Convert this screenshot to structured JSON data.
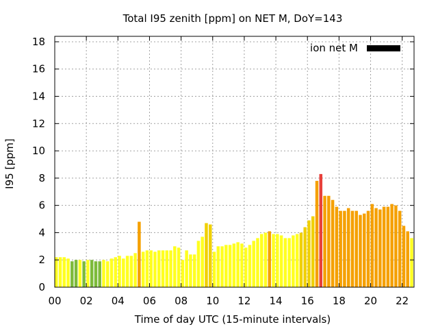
{
  "chart_data": {
    "type": "bar",
    "title": "Total I95 zenith [ppm] on NET M, DoY=143",
    "xlabel": "Time of day UTC (15-minute intervals)",
    "ylabel": "I95 [ppm]",
    "xlim": [
      0,
      22.75
    ],
    "ylim": [
      0,
      18.4
    ],
    "x_ticks": [
      "00",
      "02",
      "04",
      "06",
      "08",
      "10",
      "12",
      "14",
      "16",
      "18",
      "20",
      "22"
    ],
    "y_ticks": [
      "0",
      "2",
      "4",
      "6",
      "8",
      "10",
      "12",
      "14",
      "16",
      "18"
    ],
    "grid": true,
    "legend": {
      "label": "ion net M",
      "color": "#000000",
      "placement": "top-right"
    },
    "bar_interval_hours": 0.25,
    "color_scale": {
      "green": "#7cba3a",
      "yellow": "#ffff20",
      "gold": "#f0d000",
      "orange": "#f5a000",
      "red": "#e8403a"
    },
    "values": [
      2.2,
      2.2,
      2.2,
      2.1,
      1.9,
      2.0,
      2.0,
      1.9,
      2.0,
      2.0,
      1.9,
      1.9,
      2.0,
      1.9,
      2.1,
      2.2,
      2.3,
      2.1,
      2.3,
      2.3,
      2.5,
      4.8,
      2.6,
      2.7,
      2.7,
      2.6,
      2.7,
      2.7,
      2.7,
      2.7,
      3.0,
      2.9,
      2.0,
      2.7,
      2.4,
      2.4,
      3.4,
      3.7,
      4.7,
      4.6,
      2.6,
      3.0,
      3.0,
      3.1,
      3.1,
      3.2,
      3.3,
      3.2,
      2.9,
      3.1,
      3.4,
      3.6,
      3.9,
      4.0,
      4.1,
      3.9,
      3.9,
      3.8,
      3.6,
      3.6,
      3.8,
      3.9,
      4.0,
      4.4,
      4.9,
      5.2,
      7.8,
      8.3,
      6.7,
      6.7,
      6.4,
      5.9,
      5.6,
      5.6,
      5.8,
      5.6,
      5.6,
      5.3,
      5.4,
      5.6,
      6.1,
      5.8,
      5.7,
      5.9,
      5.9,
      6.1,
      6.0,
      5.6,
      4.5,
      4.1,
      3.6,
      3.6,
      3.7,
      3.8,
      4.0
    ],
    "bar_colors": [
      "yellow",
      "yellow",
      "yellow",
      "yellow",
      "green",
      "green",
      "yellow",
      "green",
      "yellow",
      "green",
      "green",
      "green",
      "yellow",
      "yellow",
      "yellow",
      "yellow",
      "yellow",
      "yellow",
      "yellow",
      "yellow",
      "yellow",
      "orange",
      "yellow",
      "yellow",
      "yellow",
      "yellow",
      "yellow",
      "yellow",
      "yellow",
      "yellow",
      "yellow",
      "yellow",
      "yellow",
      "yellow",
      "yellow",
      "yellow",
      "yellow",
      "yellow",
      "gold",
      "gold",
      "yellow",
      "yellow",
      "yellow",
      "yellow",
      "yellow",
      "yellow",
      "yellow",
      "yellow",
      "yellow",
      "yellow",
      "yellow",
      "yellow",
      "yellow",
      "yellow",
      "orange",
      "yellow",
      "yellow",
      "yellow",
      "yellow",
      "yellow",
      "yellow",
      "yellow",
      "gold",
      "gold",
      "gold",
      "gold",
      "orange",
      "red",
      "orange",
      "orange",
      "orange",
      "orange",
      "orange",
      "orange",
      "orange",
      "orange",
      "orange",
      "orange",
      "orange",
      "orange",
      "orange",
      "orange",
      "orange",
      "orange",
      "orange",
      "orange",
      "orange",
      "orange",
      "orange",
      "orange",
      "yellow",
      "yellow",
      "yellow",
      "yellow",
      "gold"
    ]
  }
}
